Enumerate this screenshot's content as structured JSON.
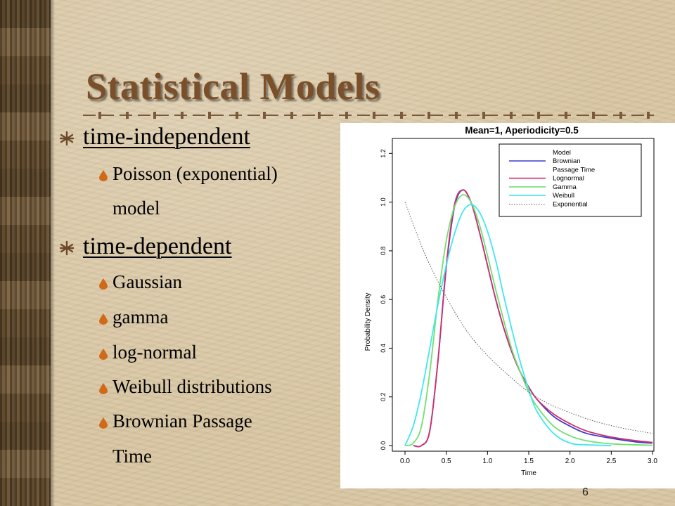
{
  "slide": {
    "title": "Statistical Models",
    "page_number": "6",
    "bullets": [
      {
        "label": "time-independent",
        "sub": [
          "Poisson (exponential)",
          "model"
        ]
      },
      {
        "label": "time-dependent",
        "sub": [
          "Gaussian",
          "gamma",
          "log-normal",
          "Weibull distributions",
          "Brownian Passage",
          "Time"
        ]
      }
    ]
  },
  "chart_data": {
    "type": "line",
    "title": "Mean=1, Aperiodicity=0.5",
    "xlabel": "Time",
    "ylabel": "Probability Density",
    "xlim": [
      0.0,
      3.0
    ],
    "ylim": [
      0.0,
      1.25
    ],
    "x_ticks": [
      "0.0",
      "0.5",
      "1.0",
      "1.5",
      "2.0",
      "2.5",
      "3.0"
    ],
    "y_ticks": [
      "0.0",
      "0.2",
      "0.4",
      "0.6",
      "0.8",
      "1.0",
      "1.2"
    ],
    "legend_position": "top-right",
    "legend_title": "Model",
    "series": [
      {
        "name": "Brownian Passage Time",
        "color": "#3a3ad0",
        "dash": "solid",
        "x": [
          0.1,
          0.2,
          0.3,
          0.4,
          0.5,
          0.6,
          0.7,
          0.8,
          0.9,
          1.0,
          1.1,
          1.2,
          1.3,
          1.4,
          1.5,
          1.6,
          1.8,
          2.0,
          2.2,
          2.5,
          2.8,
          3.0
        ],
        "y": [
          0.0,
          0.0,
          0.06,
          0.35,
          0.73,
          0.98,
          1.05,
          1.0,
          0.88,
          0.74,
          0.6,
          0.48,
          0.38,
          0.3,
          0.24,
          0.19,
          0.12,
          0.08,
          0.05,
          0.03,
          0.015,
          0.01
        ]
      },
      {
        "name": "Lognormal",
        "color": "#d0306a",
        "dash": "solid",
        "x": [
          0.1,
          0.2,
          0.3,
          0.4,
          0.5,
          0.6,
          0.7,
          0.8,
          0.9,
          1.0,
          1.1,
          1.2,
          1.3,
          1.4,
          1.5,
          1.6,
          1.8,
          2.0,
          2.2,
          2.5,
          2.8,
          3.0
        ],
        "y": [
          0.0,
          0.0,
          0.06,
          0.35,
          0.74,
          0.99,
          1.05,
          1.0,
          0.88,
          0.74,
          0.6,
          0.48,
          0.38,
          0.3,
          0.24,
          0.19,
          0.13,
          0.09,
          0.06,
          0.035,
          0.02,
          0.013
        ]
      },
      {
        "name": "Gamma",
        "color": "#70e070",
        "dash": "solid",
        "x": [
          0.0,
          0.1,
          0.2,
          0.3,
          0.4,
          0.5,
          0.6,
          0.7,
          0.8,
          0.9,
          1.0,
          1.1,
          1.2,
          1.3,
          1.4,
          1.5,
          1.6,
          1.8,
          2.0,
          2.2,
          2.5,
          2.8,
          3.0
        ],
        "y": [
          0.0,
          0.01,
          0.08,
          0.3,
          0.6,
          0.84,
          0.98,
          1.03,
          1.0,
          0.91,
          0.78,
          0.64,
          0.51,
          0.39,
          0.3,
          0.22,
          0.16,
          0.08,
          0.04,
          0.02,
          0.007,
          0.003,
          0.001
        ]
      },
      {
        "name": "Weibull",
        "color": "#40e8f0",
        "dash": "solid",
        "x": [
          0.0,
          0.1,
          0.2,
          0.3,
          0.4,
          0.5,
          0.6,
          0.7,
          0.8,
          0.9,
          1.0,
          1.1,
          1.2,
          1.3,
          1.4,
          1.5,
          1.6,
          1.8,
          2.0,
          2.2,
          2.5
        ],
        "y": [
          0.0,
          0.08,
          0.22,
          0.4,
          0.58,
          0.74,
          0.87,
          0.96,
          0.99,
          0.96,
          0.88,
          0.76,
          0.61,
          0.47,
          0.34,
          0.23,
          0.14,
          0.05,
          0.01,
          0.003,
          0.0
        ]
      },
      {
        "name": "Exponential",
        "color": "#555555",
        "dash": "dotted",
        "x": [
          0.0,
          0.25,
          0.5,
          0.75,
          1.0,
          1.25,
          1.5,
          1.75,
          2.0,
          2.25,
          2.5,
          2.75,
          3.0
        ],
        "y": [
          1.0,
          0.78,
          0.61,
          0.47,
          0.37,
          0.29,
          0.22,
          0.17,
          0.135,
          0.105,
          0.082,
          0.064,
          0.05
        ]
      }
    ],
    "legend_entries": [
      "Brownian",
      "Passage Time",
      "Lognormal",
      "Gamma",
      "Weibull",
      "Exponential"
    ],
    "legend_colors": [
      "#3a3ad0",
      "",
      "#d0306a",
      "#70e070",
      "#40e8f0",
      "#555555"
    ]
  }
}
